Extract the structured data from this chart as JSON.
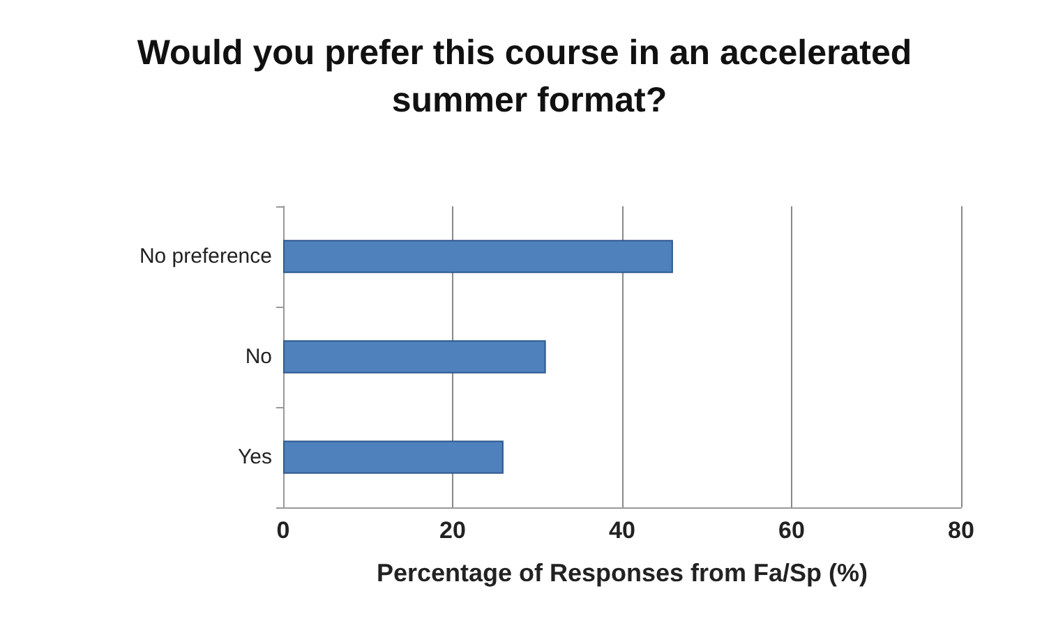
{
  "chart_data": {
    "type": "bar",
    "orientation": "horizontal",
    "title": "Would you prefer this course in an accelerated summer format?",
    "xlabel": "Percentage of Responses from Fa/Sp (%)",
    "categories": [
      "No preference",
      "No",
      "Yes"
    ],
    "values": [
      46,
      31,
      26
    ],
    "color": "#4f81bd",
    "xlim": [
      0,
      80
    ],
    "xticks": [
      0,
      20,
      40,
      60,
      80
    ],
    "grid": "x"
  }
}
